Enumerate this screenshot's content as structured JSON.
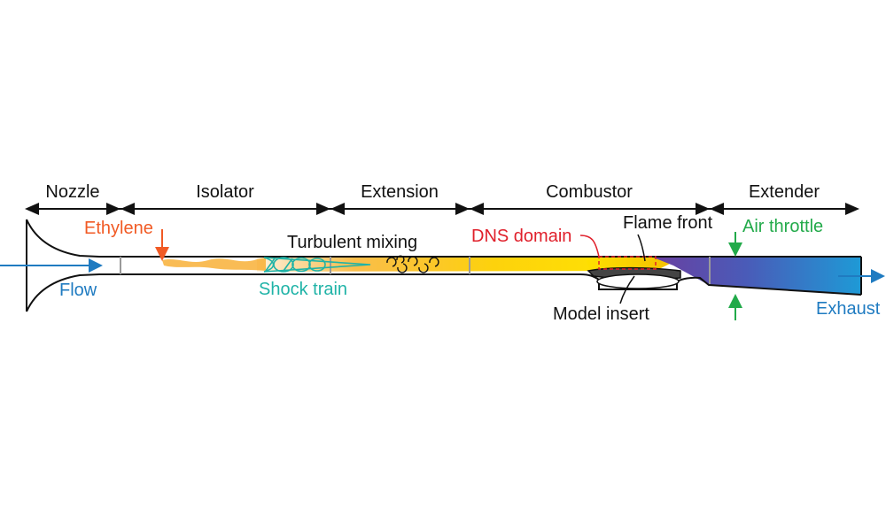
{
  "sections": [
    {
      "label": "Nozzle"
    },
    {
      "label": "Isolator"
    },
    {
      "label": "Extension"
    },
    {
      "label": "Combustor"
    },
    {
      "label": "Extender"
    }
  ],
  "annotations": {
    "ethylene": "Ethylene",
    "flow": "Flow",
    "shock_train": "Shock train",
    "turbulent_mixing": "Turbulent mixing",
    "dns_domain": "DNS domain",
    "flame_front": "Flame front",
    "air_throttle": "Air throttle",
    "model_insert": "Model insert",
    "exhaust": "Exhaust"
  },
  "colors": {
    "ethylene": "#f15a24",
    "flow": "#1f7bc1",
    "shock_train": "#1fb3a7",
    "dns_domain": "#e0202b",
    "air_throttle": "#22aa4a",
    "exhaust": "#1f7bc1",
    "flame_yellow": "#ffe000",
    "flame_orange": "#f7a51c",
    "product_purple": "#6a3fa0",
    "product_blue": "#1e9ad6"
  }
}
